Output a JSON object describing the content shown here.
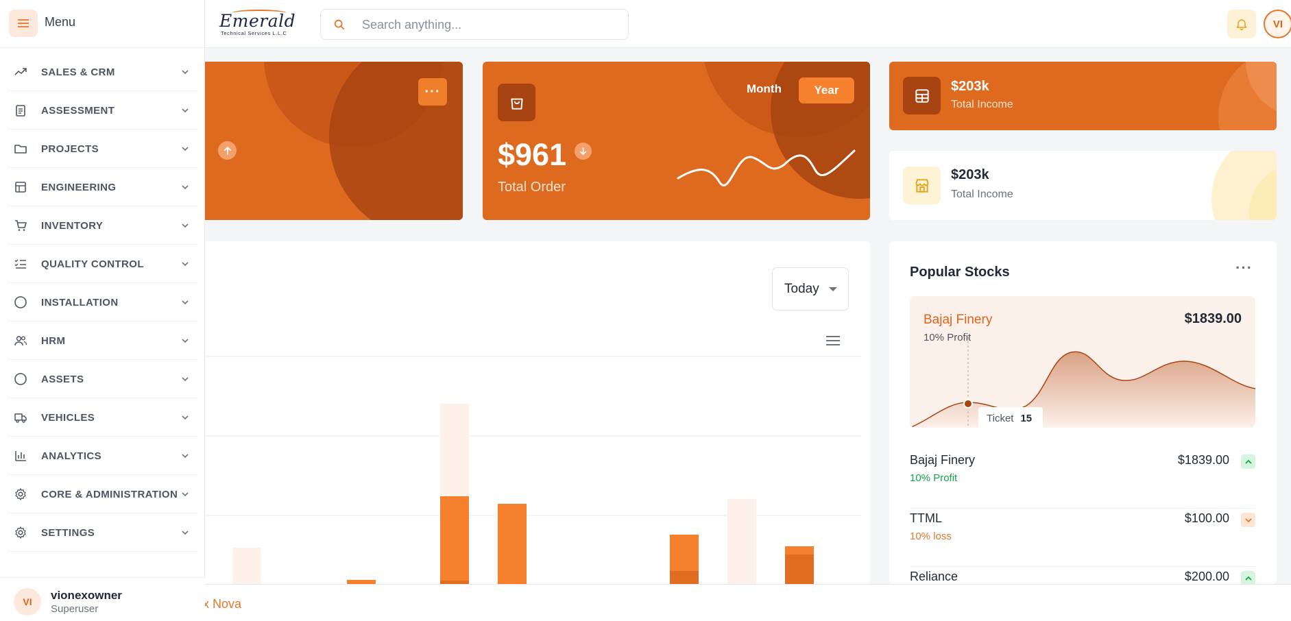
{
  "header": {
    "logo_text": "Emerald",
    "logo_subtitle": "Technical Services L.L.C",
    "search_placeholder": "Search anything...",
    "user_initials": "VI"
  },
  "sidebar": {
    "title": "Menu",
    "items": [
      {
        "label": "SALES & CRM",
        "icon": "trend-icon"
      },
      {
        "label": "ASSESSMENT",
        "icon": "clipboard-icon"
      },
      {
        "label": "PROJECTS",
        "icon": "folder-icon"
      },
      {
        "label": "ENGINEERING",
        "icon": "layout-icon"
      },
      {
        "label": "INVENTORY",
        "icon": "cart-icon"
      },
      {
        "label": "QUALITY CONTROL",
        "icon": "checklist-icon"
      },
      {
        "label": "INSTALLATION",
        "icon": "circle-icon"
      },
      {
        "label": "HRM",
        "icon": "users-icon"
      },
      {
        "label": "ASSETS",
        "icon": "circle-icon"
      },
      {
        "label": "VEHICLES",
        "icon": "truck-icon"
      },
      {
        "label": "ANALYTICS",
        "icon": "bar-chart-icon"
      },
      {
        "label": "CORE & ADMINISTRATION",
        "icon": "gear-icon"
      },
      {
        "label": "SETTINGS",
        "icon": "gear-icon"
      }
    ],
    "user": {
      "initials": "VI",
      "name": "vionexowner",
      "role": "Superuser"
    }
  },
  "cards": {
    "order": {
      "amount": "$961",
      "label": "Total Order",
      "month_label": "Month",
      "year_label": "Year"
    },
    "income_1": {
      "value": "$203k",
      "label": "Total Income"
    },
    "income_2": {
      "value": "$203k",
      "label": "Total Income"
    }
  },
  "chart_panel": {
    "filter_label": "Today"
  },
  "stocks": {
    "title": "Popular Stocks",
    "highlight": {
      "name": "Bajaj Finery",
      "price": "$1839.00",
      "sub": "10% Profit",
      "tooltip_label": "Ticket",
      "tooltip_value": "15"
    },
    "rows": [
      {
        "name": "Bajaj Finery",
        "price": "$1839.00",
        "change": "10% Profit",
        "trend": "up"
      },
      {
        "name": "TTML",
        "price": "$100.00",
        "change": "10% loss",
        "trend": "down"
      },
      {
        "name": "Reliance",
        "price": "$200.00",
        "change": "",
        "trend": "up"
      }
    ]
  },
  "footer": {
    "text": "ex Nova"
  },
  "colors": {
    "accent": "#de6a1f",
    "accent_light": "#f5812e",
    "profit": "#16a34a",
    "loss": "#e5772a"
  }
}
